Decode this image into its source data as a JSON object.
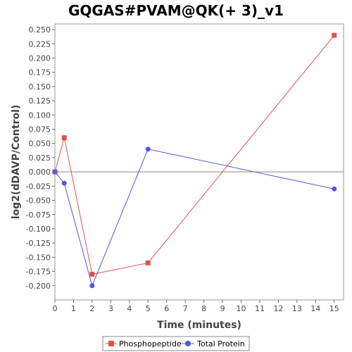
{
  "chart_data": {
    "type": "line",
    "title": "GQGAS#PVAM@QK(+ 3)_v1",
    "xlabel": "Time (minutes)",
    "ylabel": "log2(dDAVP/Control)",
    "xlim": [
      0,
      15.5
    ],
    "ylim": [
      -0.225,
      0.26
    ],
    "x_ticks": [
      0,
      1,
      2,
      3,
      4,
      5,
      6,
      7,
      8,
      9,
      10,
      11,
      12,
      13,
      14,
      15
    ],
    "y_ticks": [
      0.25,
      0.225,
      0.2,
      0.175,
      0.15,
      0.125,
      0.1,
      0.075,
      0.05,
      0.025,
      0.0,
      -0.025,
      -0.05,
      -0.075,
      -0.1,
      -0.125,
      -0.15,
      -0.175,
      -0.2
    ],
    "y_tick_labels": [
      "0.250",
      "0.225",
      "0.200",
      "0.175",
      "0.150",
      "0.125",
      "0.100",
      "0.075",
      "0.050",
      "0.025",
      "0.000",
      "-0.025",
      "-0.050",
      "-0.075",
      "-0.100",
      "-0.125",
      "-0.150",
      "-0.175",
      "-0.200"
    ],
    "zero_line": true,
    "grid": false,
    "legend_position": "bottom",
    "series": [
      {
        "name": "Phosphopeptide",
        "color": "#e05252",
        "marker": "square",
        "x": [
          0,
          0.5,
          2,
          5,
          15
        ],
        "y": [
          0.0,
          0.06,
          -0.18,
          -0.16,
          0.24
        ]
      },
      {
        "name": "Total Protein",
        "color": "#5555dd",
        "marker": "circle",
        "x": [
          0,
          0.5,
          2,
          5,
          15
        ],
        "y": [
          0.0,
          -0.02,
          -0.2,
          0.04,
          -0.03
        ]
      }
    ]
  }
}
